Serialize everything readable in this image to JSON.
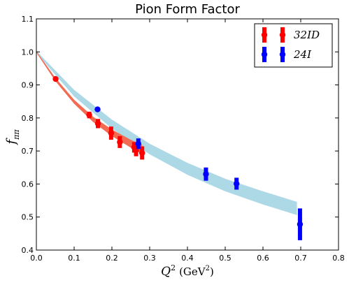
{
  "chart_data": {
    "type": "scatter",
    "title": "Pion Form Factor",
    "xlabel_main": "Q",
    "xlabel_sup": "2",
    "xlabel_unit": "(GeV",
    "xlabel_unit_sup": "2",
    "xlabel_close": ")",
    "ylabel_main": "f",
    "ylabel_sub": "ππ",
    "xlim": [
      0.0,
      0.8
    ],
    "ylim": [
      0.4,
      1.1
    ],
    "xticks": [
      "0.0",
      "0.1",
      "0.2",
      "0.3",
      "0.4",
      "0.5",
      "0.6",
      "0.7",
      "0.8"
    ],
    "yticks": [
      "0.4",
      "0.5",
      "0.6",
      "0.7",
      "0.8",
      "0.9",
      "1.0",
      "1.1"
    ],
    "grid": false,
    "legend_position": "top-right",
    "series": [
      {
        "name": "32ID",
        "color": "#ff0000",
        "band_color": "#f26b52",
        "band": [
          {
            "x": 0.0,
            "lo": 0.998,
            "hi": 1.002
          },
          {
            "x": 0.05,
            "lo": 0.912,
            "hi": 0.922
          },
          {
            "x": 0.1,
            "lo": 0.843,
            "hi": 0.855
          },
          {
            "x": 0.15,
            "lo": 0.788,
            "hi": 0.804
          },
          {
            "x": 0.2,
            "lo": 0.745,
            "hi": 0.765
          },
          {
            "x": 0.25,
            "lo": 0.71,
            "hi": 0.734
          },
          {
            "x": 0.28,
            "lo": 0.691,
            "hi": 0.719
          }
        ],
        "points": [
          {
            "x": 0.051,
            "y": 0.918,
            "err": 0.006
          },
          {
            "x": 0.14,
            "y": 0.809,
            "err": 0.01
          },
          {
            "x": 0.163,
            "y": 0.783,
            "err": 0.014
          },
          {
            "x": 0.198,
            "y": 0.754,
            "err": 0.02
          },
          {
            "x": 0.221,
            "y": 0.727,
            "err": 0.018
          },
          {
            "x": 0.259,
            "y": 0.711,
            "err": 0.016
          },
          {
            "x": 0.264,
            "y": 0.702,
            "err": 0.018
          },
          {
            "x": 0.28,
            "y": 0.694,
            "err": 0.02
          }
        ]
      },
      {
        "name": "24I",
        "color": "#0000ff",
        "band_color": "#add8e6",
        "band": [
          {
            "x": 0.0,
            "lo": 0.997,
            "hi": 1.003
          },
          {
            "x": 0.1,
            "lo": 0.865,
            "hi": 0.885
          },
          {
            "x": 0.2,
            "lo": 0.768,
            "hi": 0.795
          },
          {
            "x": 0.3,
            "lo": 0.69,
            "hi": 0.722
          },
          {
            "x": 0.4,
            "lo": 0.628,
            "hi": 0.664
          },
          {
            "x": 0.5,
            "lo": 0.578,
            "hi": 0.616
          },
          {
            "x": 0.6,
            "lo": 0.538,
            "hi": 0.578
          },
          {
            "x": 0.69,
            "lo": 0.506,
            "hi": 0.546
          }
        ],
        "points": [
          {
            "x": 0.162,
            "y": 0.826,
            "err": 0.006
          },
          {
            "x": 0.27,
            "y": 0.722,
            "err": 0.016
          },
          {
            "x": 0.449,
            "y": 0.63,
            "err": 0.02
          },
          {
            "x": 0.53,
            "y": 0.601,
            "err": 0.018
          },
          {
            "x": 0.698,
            "y": 0.478,
            "err": 0.048
          }
        ]
      }
    ]
  }
}
